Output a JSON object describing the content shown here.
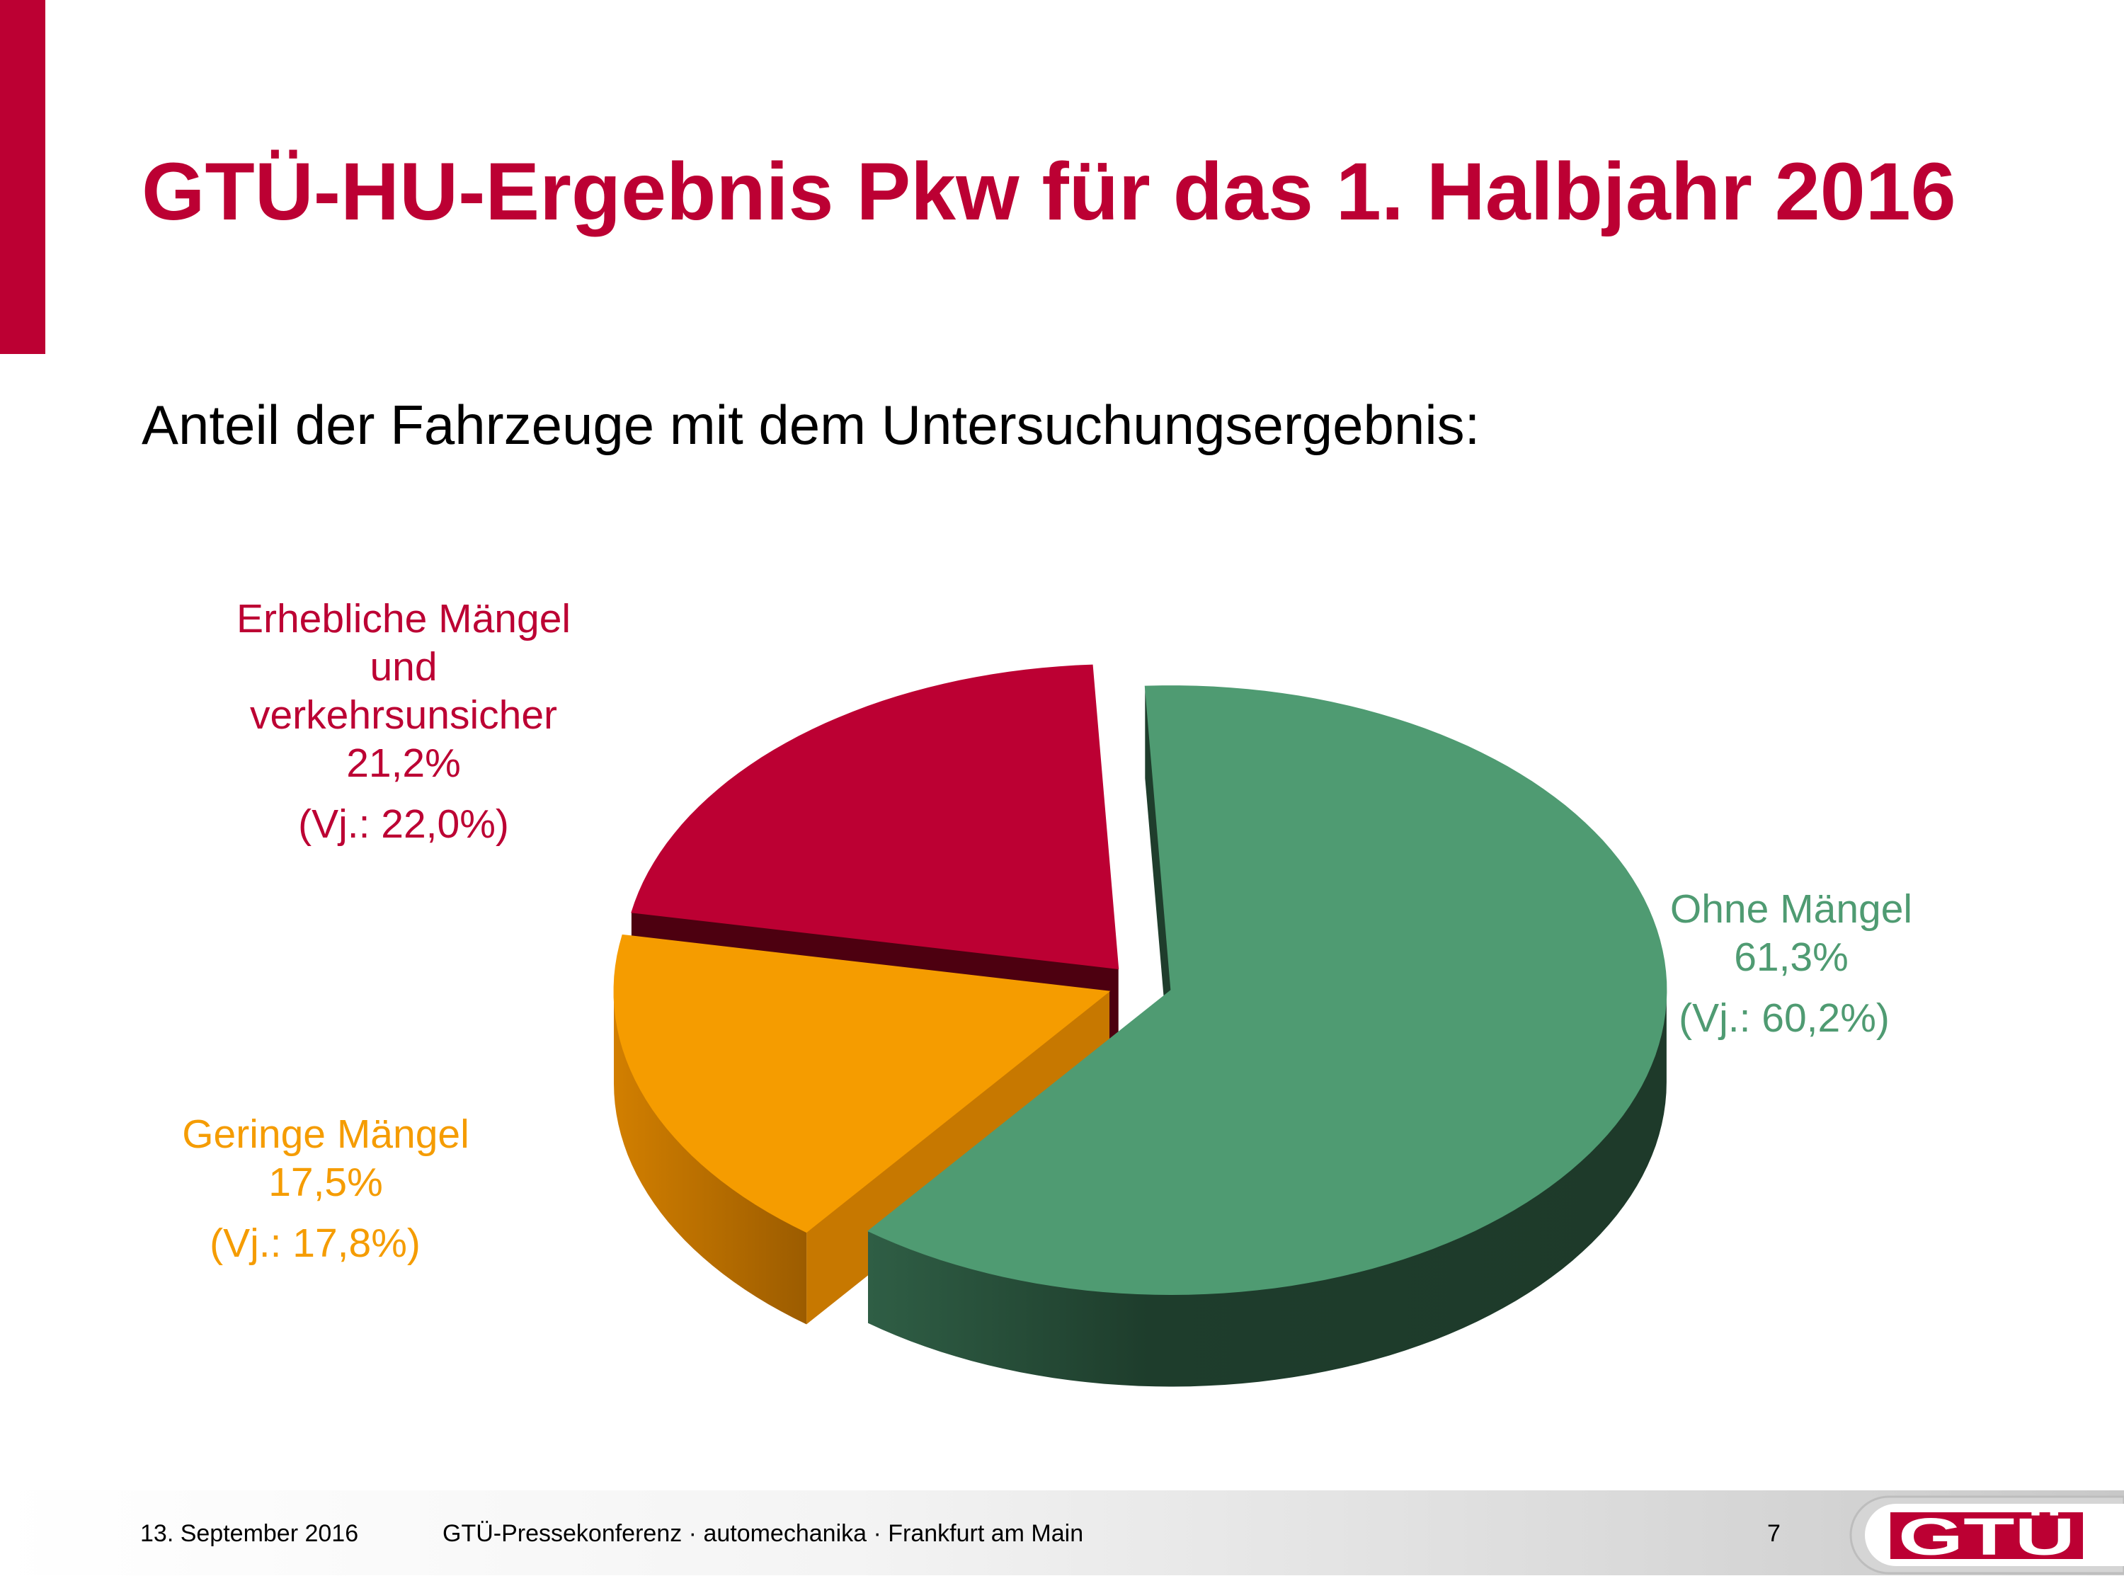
{
  "title": "GTÜ-HU-Ergebnis Pkw für das 1. Halbjahr 2016",
  "subtitle": "Anteil der Fahrzeuge mit dem Untersuchungsergebnis:",
  "colors": {
    "brand_red": "#bc0033",
    "green": "#4f9b72",
    "orange": "#f59c00"
  },
  "chart_data": {
    "type": "pie",
    "title": "",
    "slices": [
      {
        "name": "Ohne Mängel",
        "value": 61.3,
        "value_label": "61,3%",
        "previous_year": "(Vj.: 60,2%)",
        "color": "#4f9b72"
      },
      {
        "name": "Geringe Mängel",
        "value": 17.5,
        "value_label": "17,5%",
        "previous_year": "(Vj.: 17,8%)",
        "color": "#f59c00"
      },
      {
        "name": "Erhebliche Mängel und verkehrsunsicher",
        "name_lines": [
          "Erhebliche Mängel",
          "und",
          "verkehrsunsicher"
        ],
        "value": 21.2,
        "value_label": "21,2%",
        "previous_year": "(Vj.: 22,0%)",
        "color": "#bc0033"
      }
    ],
    "style": "3d-exploded"
  },
  "footer": {
    "date": "13. September 2016",
    "event": "GTÜ-Pressekonferenz · automechanika · Frankfurt am Main",
    "page_number": "7",
    "logo_text": "GTÜ"
  }
}
